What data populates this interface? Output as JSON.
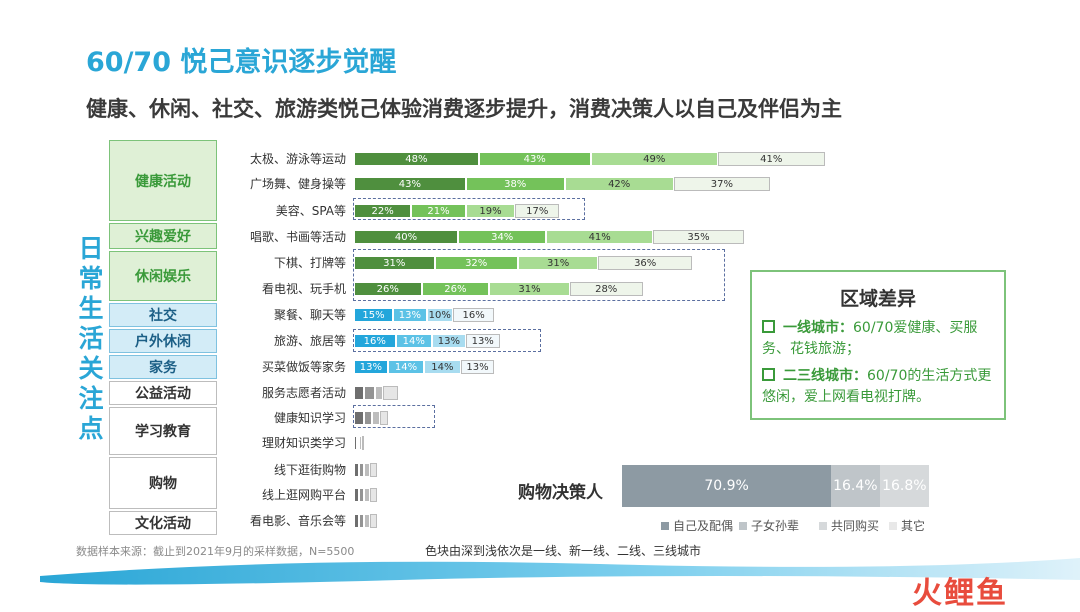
{
  "title": "60/70 悦己意识逐步觉醒",
  "subtitle": "健康、休闲、社交、旅游类悦己体验消费逐步提升，消费决策人以自己及伴侣为主",
  "side_label": [
    "日",
    "常",
    "生",
    "活",
    "关",
    "注",
    "点"
  ],
  "categories": [
    {
      "label": "健康活动",
      "style": "green"
    },
    {
      "label": "兴趣爱好",
      "style": "green"
    },
    {
      "label": "休闲娱乐",
      "style": "green"
    },
    {
      "label": "社交",
      "style": "blue"
    },
    {
      "label": "户外休闲",
      "style": "blue"
    },
    {
      "label": "家务",
      "style": "blue"
    },
    {
      "label": "公益活动",
      "style": "white"
    },
    {
      "label": "学习教育",
      "style": "white"
    },
    {
      "label": "购物",
      "style": "white"
    },
    {
      "label": "文化活动",
      "style": "white"
    }
  ],
  "chart_data": {
    "type": "bar",
    "stacked": true,
    "series_names": [
      "一线",
      "新一线",
      "二线",
      "三线城市"
    ],
    "color_note": "色块由深到浅依次是一线、新一线、二线、三线城市",
    "rows": [
      {
        "label": "太极、游泳等运动",
        "values": [
          48,
          43,
          49,
          41
        ],
        "labels": [
          "48%",
          "43%",
          "49%",
          "41%"
        ],
        "palette": "green"
      },
      {
        "label": "广场舞、健身操等",
        "values": [
          43,
          38,
          42,
          37
        ],
        "labels": [
          "43%",
          "38%",
          "42%",
          "37%"
        ],
        "palette": "green"
      },
      {
        "label": "美容、SPA等",
        "values": [
          22,
          21,
          19,
          17
        ],
        "labels": [
          "22%",
          "21%",
          "19%",
          "17%"
        ],
        "palette": "green"
      },
      {
        "label": "唱歌、书画等活动",
        "values": [
          40,
          34,
          41,
          35
        ],
        "labels": [
          "40%",
          "34%",
          "41%",
          "35%"
        ],
        "palette": "green"
      },
      {
        "label": "下棋、打牌等",
        "values": [
          31,
          32,
          31,
          36
        ],
        "labels": [
          "31%",
          "32%",
          "31%",
          "36%"
        ],
        "palette": "green"
      },
      {
        "label": "看电视、玩手机",
        "values": [
          26,
          26,
          31,
          28
        ],
        "labels": [
          "26%",
          "26%",
          "31%",
          "28%"
        ],
        "palette": "green"
      },
      {
        "label": "聚餐、聊天等",
        "values": [
          15,
          13,
          10,
          16
        ],
        "labels": [
          "15%",
          "13%",
          "10%",
          "16%"
        ],
        "palette": "blue"
      },
      {
        "label": "旅游、旅居等",
        "values": [
          16,
          14,
          13,
          13
        ],
        "labels": [
          "16%",
          "14%",
          "13%",
          "13%"
        ],
        "palette": "blue"
      },
      {
        "label": "买菜做饭等家务",
        "values": [
          13,
          14,
          14,
          13
        ],
        "labels": [
          "13%",
          "14%",
          "14%",
          "13%"
        ],
        "palette": "blue"
      },
      {
        "label": "服务志愿者活动",
        "values": [
          4,
          4,
          3,
          6
        ],
        "labels": [
          "",
          "",
          "",
          ""
        ],
        "palette": "gray"
      },
      {
        "label": "健康知识学习",
        "values": [
          4,
          3,
          3,
          3
        ],
        "labels": [
          "",
          "",
          "",
          ""
        ],
        "palette": "gray"
      },
      {
        "label": "理财知识类学习",
        "values": [
          1,
          1,
          1,
          1
        ],
        "labels": [
          "",
          "",
          "",
          ""
        ],
        "palette": "gray"
      },
      {
        "label": "线下逛街购物",
        "values": [
          2,
          2,
          2,
          3
        ],
        "labels": [
          "",
          "",
          "",
          ""
        ],
        "palette": "gray"
      },
      {
        "label": "线上逛网购平台",
        "values": [
          2,
          2,
          2,
          3
        ],
        "labels": [
          "",
          "",
          "",
          ""
        ],
        "palette": "gray"
      },
      {
        "label": "看电影、音乐会等",
        "values": [
          2,
          2,
          2,
          3
        ],
        "labels": [
          "",
          "",
          "",
          ""
        ],
        "palette": "gray"
      }
    ],
    "decision_maker": {
      "label": "购物决策人",
      "segments": [
        {
          "name": "自己及配偶",
          "value": 70.9,
          "label": "70.9%"
        },
        {
          "name": "子女孙辈",
          "value": 16.4,
          "label": "16.4%"
        },
        {
          "name": "共同购买",
          "value": 16.8,
          "label": "16.8%"
        },
        {
          "name": "其它",
          "value": 0,
          "label": ""
        }
      ]
    }
  },
  "colors": {
    "green": [
      "#4f8f3e",
      "#74c25a",
      "#a8dc93",
      "#eef5ea"
    ],
    "blue": [
      "#23a6db",
      "#5cc2e6",
      "#a8dcf0",
      "#f2f8fb"
    ],
    "gray": [
      "#6e6e6e",
      "#949494",
      "#bdbdbd",
      "#e6e6e6"
    ],
    "dm": [
      "#8d9aa3",
      "#bfc5c9",
      "#d6d9db",
      "#e8e8e8"
    ],
    "accent": "#2aa6d6",
    "panel_green": "#3a9a3a"
  },
  "region_panel": {
    "title": "区域差异",
    "items": [
      {
        "head": "一线城市：",
        "text": "60/70爱健康、买服务、花钱旅游；"
      },
      {
        "head": "二三线城市：",
        "text": "60/70的生活方式更悠闲，爱上网看电视打牌。"
      }
    ]
  },
  "footer": {
    "source": "数据样本来源：截止到2021年9月的采样数据，N=5500",
    "note": "色块由深到浅依次是一线、新一线、二线、三线城市"
  },
  "logo": "火鲤鱼"
}
